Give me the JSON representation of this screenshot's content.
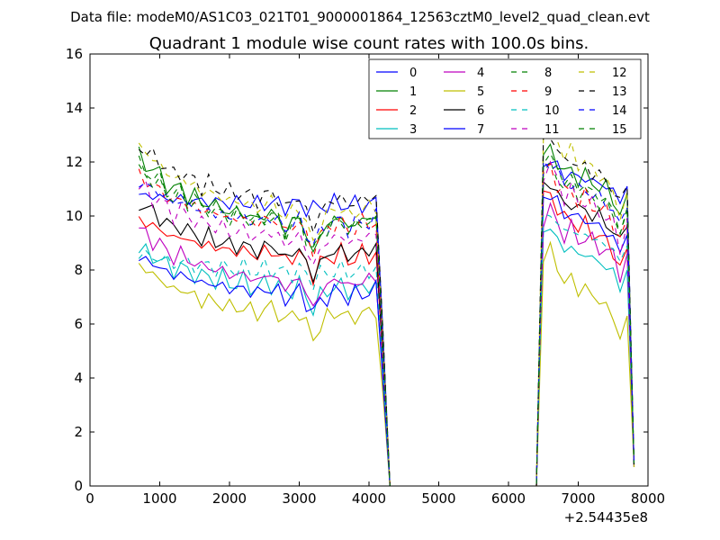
{
  "figure": {
    "suptitle": "Data file: modeM0/AS1C03_021T01_9000001864_12563cztM0_level2_quad_clean.evt"
  },
  "chart_data": {
    "type": "line",
    "title": "Quadrant 1 module wise count rates with 100.0s bins.",
    "xlabel": "",
    "ylabel": "",
    "xlim": [
      0,
      8000
    ],
    "ylim": [
      0,
      16
    ],
    "x_offset_label": "+2.54435e8",
    "xticks": [
      0,
      1000,
      2000,
      3000,
      4000,
      5000,
      6000,
      7000,
      8000
    ],
    "xtick_labels": [
      "0",
      "1000",
      "2000",
      "3000",
      "4000",
      "5000",
      "6000",
      "7000",
      "8000"
    ],
    "yticks": [
      0,
      2,
      4,
      6,
      8,
      10,
      12,
      14,
      16
    ],
    "ytick_labels": [
      "0",
      "2",
      "4",
      "6",
      "8",
      "10",
      "12",
      "14",
      "16"
    ],
    "grid": false,
    "legend": {
      "location": "top-right",
      "columns": 4
    },
    "segments": [
      {
        "x_start": 700,
        "x_step": 100,
        "count": 36
      },
      {
        "x_start": 4300,
        "x_step": 100,
        "count": 22
      },
      {
        "x_start": 6500,
        "x_step": 100,
        "count": 14
      }
    ],
    "series": [
      {
        "name": "0",
        "color": "#0000ff",
        "dash": "solid",
        "plateau1": 10.8,
        "end1": 10.4,
        "plateau2": 12.1,
        "end2": 10.8
      },
      {
        "name": "1",
        "color": "#008000",
        "dash": "solid",
        "plateau1": 12.2,
        "end1": 9.6,
        "plateau2": 12.5,
        "end2": 10.5
      },
      {
        "name": "2",
        "color": "#ff0000",
        "dash": "solid",
        "plateau1": 9.9,
        "end1": 8.4,
        "plateau2": 10.9,
        "end2": 8.5
      },
      {
        "name": "3",
        "color": "#00bfbf",
        "dash": "solid",
        "plateau1": 8.8,
        "end1": 7.2,
        "plateau2": 9.6,
        "end2": 7.7
      },
      {
        "name": "4",
        "color": "#bf00bf",
        "dash": "solid",
        "plateau1": 9.5,
        "end1": 7.4,
        "plateau2": 10.2,
        "end2": 8.3
      },
      {
        "name": "5",
        "color": "#bfbf00",
        "dash": "solid",
        "plateau1": 8.2,
        "end1": 6.2,
        "plateau2": 8.8,
        "end2": 6.0
      },
      {
        "name": "6",
        "color": "#000000",
        "dash": "solid",
        "plateau1": 10.5,
        "end1": 8.5,
        "plateau2": 11.3,
        "end2": 9.3
      },
      {
        "name": "7",
        "color": "#0000ff",
        "dash": "solid",
        "plateau1": 8.5,
        "end1": 7.0,
        "plateau2": 10.9,
        "end2": 9.0
      },
      {
        "name": "8",
        "color": "#008000",
        "dash": "dashed",
        "plateau1": 11.9,
        "end1": 9.6,
        "plateau2": 11.9,
        "end2": 9.9
      },
      {
        "name": "9",
        "color": "#ff0000",
        "dash": "dashed",
        "plateau1": 11.5,
        "end1": 9.5,
        "plateau2": 11.8,
        "end2": 9.6
      },
      {
        "name": "10",
        "color": "#00bfbf",
        "dash": "dashed",
        "plateau1": 8.6,
        "end1": 7.9,
        "plateau2": 10.1,
        "end2": 8.6
      },
      {
        "name": "11",
        "color": "#bf00bf",
        "dash": "dashed",
        "plateau1": 11.1,
        "end1": 9.0,
        "plateau2": 11.9,
        "end2": 9.4
      },
      {
        "name": "12",
        "color": "#bfbf00",
        "dash": "dashed",
        "plateau1": 12.6,
        "end1": 10.0,
        "plateau2": 13.6,
        "end2": 10.6
      },
      {
        "name": "13",
        "color": "#000000",
        "dash": "dashed",
        "plateau1": 12.6,
        "end1": 10.4,
        "plateau2": 13.0,
        "end2": 10.8
      },
      {
        "name": "14",
        "color": "#0000ff",
        "dash": "dashed",
        "plateau1": 11.3,
        "end1": 9.6,
        "plateau2": 12.1,
        "end2": 10.0
      },
      {
        "name": "15",
        "color": "#008000",
        "dash": "dashed",
        "plateau1": 11.7,
        "end1": 9.5,
        "plateau2": 12.3,
        "end2": 10.0
      }
    ]
  }
}
